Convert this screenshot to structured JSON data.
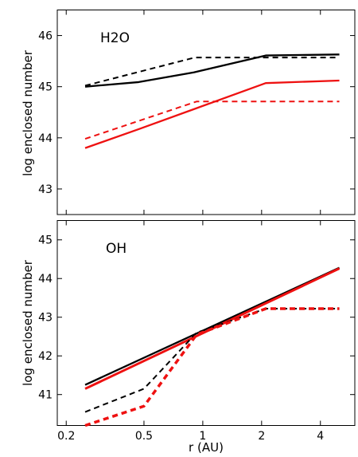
{
  "chart_data": {
    "type": "line",
    "shared_x": {
      "label": "r (AU)",
      "scale": "log",
      "lim": [
        0.18,
        6.0
      ],
      "ticks": [
        0.2,
        0.5,
        1,
        2,
        4
      ],
      "tick_labels": [
        "0.2",
        "0.5",
        "1",
        "2",
        "4"
      ]
    },
    "ylabel": "log enclosed number",
    "colors": {
      "black": "#000000",
      "red": "#ee1111"
    },
    "panels": [
      {
        "panel_label": "H2O",
        "ylim": [
          42.5,
          46.5
        ],
        "yticks": [
          43,
          44,
          45,
          46
        ],
        "ytick_labels": [
          "43",
          "44",
          "45",
          "46"
        ],
        "series": [
          {
            "color": "black",
            "style": "solid",
            "width": 2.3,
            "x": [
              0.25,
              0.47,
              0.9,
              2.1,
              5.0
            ],
            "y": [
              45.0,
              45.09,
              45.28,
              45.61,
              45.63
            ]
          },
          {
            "color": "black",
            "style": "dashed",
            "width": 2.0,
            "x": [
              0.25,
              0.91,
              2.1,
              5.0
            ],
            "y": [
              45.02,
              45.57,
              45.57,
              45.57
            ]
          },
          {
            "color": "red",
            "style": "solid",
            "width": 2.3,
            "x": [
              0.25,
              0.47,
              0.93,
              2.1,
              5.0
            ],
            "y": [
              43.8,
              44.17,
              44.58,
              45.07,
              45.12
            ]
          },
          {
            "color": "red",
            "style": "dashed",
            "width": 2.0,
            "x": [
              0.25,
              0.93,
              5.0
            ],
            "y": [
              43.98,
              44.71,
              44.71
            ]
          }
        ]
      },
      {
        "panel_label": "OH",
        "ylim": [
          40.2,
          45.5
        ],
        "yticks": [
          41,
          42,
          43,
          44,
          45
        ],
        "ytick_labels": [
          "41",
          "42",
          "43",
          "44",
          "45"
        ],
        "series": [
          {
            "color": "black",
            "style": "solid",
            "width": 2.3,
            "x": [
              0.25,
              5.0
            ],
            "y": [
              41.25,
              44.28
            ]
          },
          {
            "color": "red",
            "style": "solid",
            "width": 3.0,
            "x": [
              0.25,
              5.0
            ],
            "y": [
              41.15,
              44.26
            ]
          },
          {
            "color": "black",
            "style": "dashed",
            "width": 2.0,
            "x": [
              0.25,
              0.5,
              0.93,
              2.1,
              5.0
            ],
            "y": [
              40.55,
              41.15,
              42.6,
              43.22,
              43.22
            ]
          },
          {
            "color": "red",
            "style": "dashed",
            "width": 3.5,
            "x": [
              0.25,
              0.5,
              0.93,
              2.1,
              5.0
            ],
            "y": [
              40.2,
              40.7,
              42.55,
              43.22,
              43.22
            ]
          }
        ]
      }
    ]
  }
}
